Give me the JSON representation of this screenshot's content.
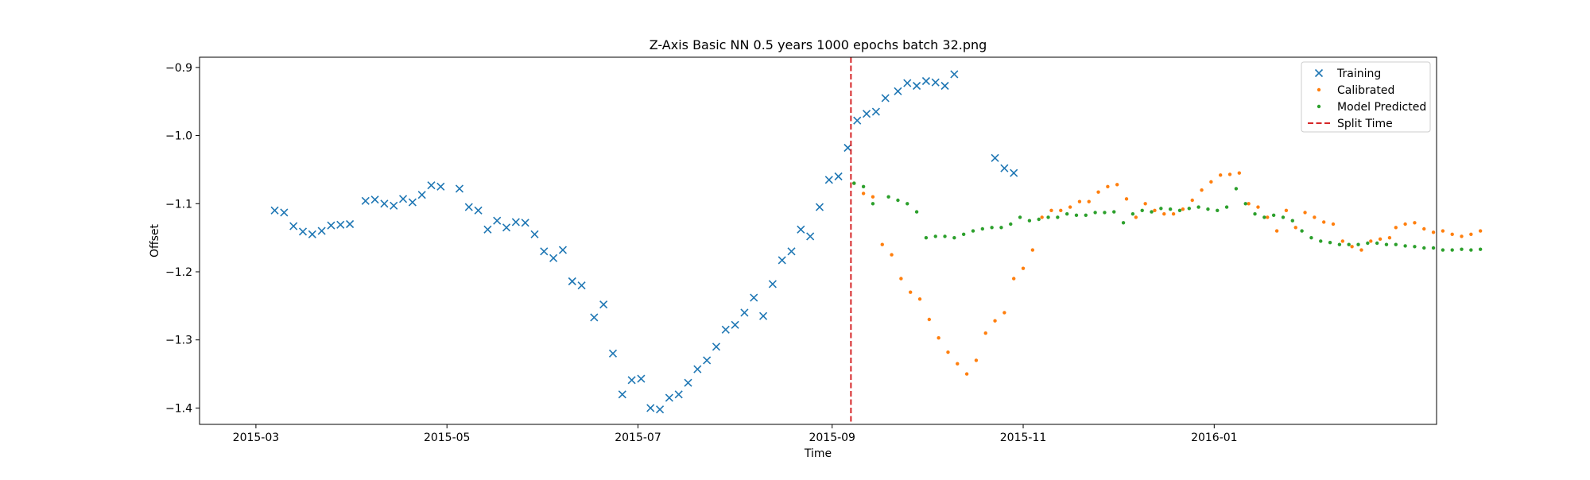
{
  "chart_data": {
    "type": "scatter",
    "title": "Z-Axis Basic NN 0.5 years 1000 epochs batch 32.png",
    "xlabel": "Time",
    "ylabel": "Offset",
    "xlim": [
      "2015-02-11",
      "2016-03-12"
    ],
    "ylim": [
      -1.424,
      -0.885
    ],
    "x_ticks": [
      "2015-03",
      "2015-05",
      "2015-07",
      "2015-09",
      "2015-11",
      "2016-01"
    ],
    "y_ticks": [
      -0.9,
      -1.0,
      -1.1,
      -1.2,
      -1.3,
      -1.4
    ],
    "y_tick_labels": [
      "−0.9",
      "−1.0",
      "−1.1",
      "−1.2",
      "−1.3",
      "−1.4"
    ],
    "split_time": "2015-09-07",
    "legend_position": "top-right",
    "grid": false,
    "series": [
      {
        "name": "Training",
        "marker": "x",
        "color": "#1f77b4",
        "points": [
          [
            "2015-03-07",
            -1.11
          ],
          [
            "2015-03-10",
            -1.113
          ],
          [
            "2015-03-13",
            -1.133
          ],
          [
            "2015-03-16",
            -1.141
          ],
          [
            "2015-03-19",
            -1.145
          ],
          [
            "2015-03-22",
            -1.14
          ],
          [
            "2015-03-25",
            -1.132
          ],
          [
            "2015-03-28",
            -1.131
          ],
          [
            "2015-03-31",
            -1.13
          ],
          [
            "2015-04-05",
            -1.096
          ],
          [
            "2015-04-08",
            -1.094
          ],
          [
            "2015-04-11",
            -1.1
          ],
          [
            "2015-04-14",
            -1.103
          ],
          [
            "2015-04-17",
            -1.093
          ],
          [
            "2015-04-20",
            -1.098
          ],
          [
            "2015-04-23",
            -1.087
          ],
          [
            "2015-04-26",
            -1.073
          ],
          [
            "2015-04-29",
            -1.075
          ],
          [
            "2015-05-05",
            -1.078
          ],
          [
            "2015-05-08",
            -1.105
          ],
          [
            "2015-05-11",
            -1.11
          ],
          [
            "2015-05-14",
            -1.138
          ],
          [
            "2015-05-17",
            -1.125
          ],
          [
            "2015-05-20",
            -1.135
          ],
          [
            "2015-05-23",
            -1.127
          ],
          [
            "2015-05-26",
            -1.128
          ],
          [
            "2015-05-29",
            -1.145
          ],
          [
            "2015-06-01",
            -1.17
          ],
          [
            "2015-06-04",
            -1.18
          ],
          [
            "2015-06-07",
            -1.168
          ],
          [
            "2015-06-10",
            -1.214
          ],
          [
            "2015-06-13",
            -1.22
          ],
          [
            "2015-06-17",
            -1.267
          ],
          [
            "2015-06-20",
            -1.248
          ],
          [
            "2015-06-23",
            -1.32
          ],
          [
            "2015-06-26",
            -1.38
          ],
          [
            "2015-06-29",
            -1.359
          ],
          [
            "2015-07-02",
            -1.357
          ],
          [
            "2015-07-05",
            -1.4
          ],
          [
            "2015-07-08",
            -1.402
          ],
          [
            "2015-07-11",
            -1.385
          ],
          [
            "2015-07-14",
            -1.38
          ],
          [
            "2015-07-17",
            -1.363
          ],
          [
            "2015-07-20",
            -1.343
          ],
          [
            "2015-07-23",
            -1.33
          ],
          [
            "2015-07-26",
            -1.31
          ],
          [
            "2015-07-29",
            -1.285
          ],
          [
            "2015-08-01",
            -1.278
          ],
          [
            "2015-08-04",
            -1.26
          ],
          [
            "2015-08-07",
            -1.238
          ],
          [
            "2015-08-10",
            -1.265
          ],
          [
            "2015-08-13",
            -1.218
          ],
          [
            "2015-08-16",
            -1.183
          ],
          [
            "2015-08-19",
            -1.17
          ],
          [
            "2015-08-22",
            -1.138
          ],
          [
            "2015-08-25",
            -1.148
          ],
          [
            "2015-08-28",
            -1.105
          ],
          [
            "2015-08-31",
            -1.065
          ],
          [
            "2015-09-03",
            -1.06
          ],
          [
            "2015-09-06",
            -1.018
          ],
          [
            "2015-09-09",
            -0.978
          ],
          [
            "2015-09-12",
            -0.968
          ],
          [
            "2015-09-15",
            -0.965
          ],
          [
            "2015-09-18",
            -0.945
          ],
          [
            "2015-09-22",
            -0.935
          ],
          [
            "2015-09-25",
            -0.923
          ],
          [
            "2015-09-28",
            -0.927
          ],
          [
            "2015-10-01",
            -0.92
          ],
          [
            "2015-10-04",
            -0.922
          ],
          [
            "2015-10-07",
            -0.927
          ],
          [
            "2015-10-10",
            -0.91
          ],
          [
            "2015-10-23",
            -1.033
          ],
          [
            "2015-10-26",
            -1.048
          ],
          [
            "2015-10-29",
            -1.055
          ]
        ]
      },
      {
        "name": "Calibrated",
        "marker": "dot",
        "color": "#ff7f0e",
        "points": [
          [
            "2015-09-08",
            -1.07
          ],
          [
            "2015-09-11",
            -1.085
          ],
          [
            "2015-09-14",
            -1.09
          ],
          [
            "2015-09-17",
            -1.16
          ],
          [
            "2015-09-20",
            -1.175
          ],
          [
            "2015-09-23",
            -1.21
          ],
          [
            "2015-09-26",
            -1.23
          ],
          [
            "2015-09-29",
            -1.24
          ],
          [
            "2015-10-02",
            -1.27
          ],
          [
            "2015-10-05",
            -1.297
          ],
          [
            "2015-10-08",
            -1.318
          ],
          [
            "2015-10-11",
            -1.335
          ],
          [
            "2015-10-14",
            -1.35
          ],
          [
            "2015-10-17",
            -1.33
          ],
          [
            "2015-10-20",
            -1.29
          ],
          [
            "2015-10-23",
            -1.272
          ],
          [
            "2015-10-26",
            -1.26
          ],
          [
            "2015-10-29",
            -1.21
          ],
          [
            "2015-11-01",
            -1.195
          ],
          [
            "2015-11-04",
            -1.168
          ],
          [
            "2015-11-07",
            -1.12
          ],
          [
            "2015-11-10",
            -1.11
          ],
          [
            "2015-11-13",
            -1.11
          ],
          [
            "2015-11-16",
            -1.105
          ],
          [
            "2015-11-19",
            -1.097
          ],
          [
            "2015-11-22",
            -1.097
          ],
          [
            "2015-11-25",
            -1.083
          ],
          [
            "2015-11-28",
            -1.075
          ],
          [
            "2015-12-01",
            -1.072
          ],
          [
            "2015-12-04",
            -1.093
          ],
          [
            "2015-12-07",
            -1.12
          ],
          [
            "2015-12-10",
            -1.1
          ],
          [
            "2015-12-13",
            -1.11
          ],
          [
            "2015-12-16",
            -1.115
          ],
          [
            "2015-12-19",
            -1.115
          ],
          [
            "2015-12-22",
            -1.108
          ],
          [
            "2015-12-25",
            -1.095
          ],
          [
            "2015-12-28",
            -1.08
          ],
          [
            "2015-12-31",
            -1.068
          ],
          [
            "2016-01-03",
            -1.058
          ],
          [
            "2016-01-06",
            -1.057
          ],
          [
            "2016-01-09",
            -1.055
          ],
          [
            "2016-01-12",
            -1.1
          ],
          [
            "2016-01-15",
            -1.105
          ],
          [
            "2016-01-18",
            -1.12
          ],
          [
            "2016-01-21",
            -1.14
          ],
          [
            "2016-01-24",
            -1.11
          ],
          [
            "2016-01-27",
            -1.135
          ],
          [
            "2016-01-30",
            -1.113
          ],
          [
            "2016-02-02",
            -1.12
          ],
          [
            "2016-02-05",
            -1.127
          ],
          [
            "2016-02-08",
            -1.13
          ],
          [
            "2016-02-11",
            -1.155
          ],
          [
            "2016-02-14",
            -1.163
          ],
          [
            "2016-02-17",
            -1.168
          ],
          [
            "2016-02-20",
            -1.155
          ],
          [
            "2016-02-23",
            -1.152
          ],
          [
            "2016-02-26",
            -1.15
          ],
          [
            "2016-02-28",
            -1.135
          ],
          [
            "2016-03-02",
            -1.13
          ],
          [
            "2016-03-05",
            -1.128
          ],
          [
            "2016-03-08",
            -1.137
          ],
          [
            "2016-03-11",
            -1.142
          ],
          [
            "2016-03-14",
            -1.14
          ],
          [
            "2016-03-17",
            -1.145
          ],
          [
            "2016-03-20",
            -1.148
          ],
          [
            "2016-03-23",
            -1.145
          ],
          [
            "2016-03-26",
            -1.14
          ]
        ]
      },
      {
        "name": "Model Predicted",
        "marker": "dot",
        "color": "#2ca02c",
        "points": [
          [
            "2015-09-08",
            -1.07
          ],
          [
            "2015-09-11",
            -1.075
          ],
          [
            "2015-09-14",
            -1.1
          ],
          [
            "2015-09-19",
            -1.09
          ],
          [
            "2015-09-22",
            -1.095
          ],
          [
            "2015-09-25",
            -1.1
          ],
          [
            "2015-09-28",
            -1.112
          ],
          [
            "2015-10-01",
            -1.15
          ],
          [
            "2015-10-04",
            -1.148
          ],
          [
            "2015-10-07",
            -1.148
          ],
          [
            "2015-10-10",
            -1.15
          ],
          [
            "2015-10-13",
            -1.145
          ],
          [
            "2015-10-16",
            -1.14
          ],
          [
            "2015-10-19",
            -1.137
          ],
          [
            "2015-10-22",
            -1.135
          ],
          [
            "2015-10-25",
            -1.135
          ],
          [
            "2015-10-28",
            -1.13
          ],
          [
            "2015-10-31",
            -1.12
          ],
          [
            "2015-11-03",
            -1.125
          ],
          [
            "2015-11-06",
            -1.123
          ],
          [
            "2015-11-09",
            -1.12
          ],
          [
            "2015-11-12",
            -1.12
          ],
          [
            "2015-11-15",
            -1.115
          ],
          [
            "2015-11-18",
            -1.117
          ],
          [
            "2015-11-21",
            -1.117
          ],
          [
            "2015-11-24",
            -1.113
          ],
          [
            "2015-11-27",
            -1.113
          ],
          [
            "2015-11-30",
            -1.112
          ],
          [
            "2015-12-03",
            -1.128
          ],
          [
            "2015-12-06",
            -1.115
          ],
          [
            "2015-12-09",
            -1.11
          ],
          [
            "2015-12-12",
            -1.112
          ],
          [
            "2015-12-15",
            -1.107
          ],
          [
            "2015-12-18",
            -1.108
          ],
          [
            "2015-12-21",
            -1.11
          ],
          [
            "2015-12-24",
            -1.107
          ],
          [
            "2015-12-27",
            -1.105
          ],
          [
            "2015-12-30",
            -1.108
          ],
          [
            "2016-01-02",
            -1.11
          ],
          [
            "2016-01-05",
            -1.105
          ],
          [
            "2016-01-08",
            -1.078
          ],
          [
            "2016-01-11",
            -1.1
          ],
          [
            "2016-01-14",
            -1.115
          ],
          [
            "2016-01-17",
            -1.12
          ],
          [
            "2016-01-20",
            -1.117
          ],
          [
            "2016-01-23",
            -1.12
          ],
          [
            "2016-01-26",
            -1.125
          ],
          [
            "2016-01-29",
            -1.14
          ],
          [
            "2016-02-01",
            -1.15
          ],
          [
            "2016-02-04",
            -1.155
          ],
          [
            "2016-02-07",
            -1.157
          ],
          [
            "2016-02-10",
            -1.16
          ],
          [
            "2016-02-13",
            -1.16
          ],
          [
            "2016-02-16",
            -1.16
          ],
          [
            "2016-02-19",
            -1.158
          ],
          [
            "2016-02-22",
            -1.158
          ],
          [
            "2016-02-25",
            -1.16
          ],
          [
            "2016-02-28",
            -1.16
          ],
          [
            "2016-03-02",
            -1.162
          ],
          [
            "2016-03-05",
            -1.163
          ],
          [
            "2016-03-08",
            -1.165
          ],
          [
            "2016-03-11",
            -1.165
          ],
          [
            "2016-03-14",
            -1.168
          ],
          [
            "2016-03-17",
            -1.168
          ],
          [
            "2016-03-20",
            -1.167
          ],
          [
            "2016-03-23",
            -1.168
          ],
          [
            "2016-03-26",
            -1.167
          ]
        ]
      }
    ],
    "reference_line": {
      "name": "Split Time",
      "style": "dashed",
      "color": "#d62728"
    }
  }
}
